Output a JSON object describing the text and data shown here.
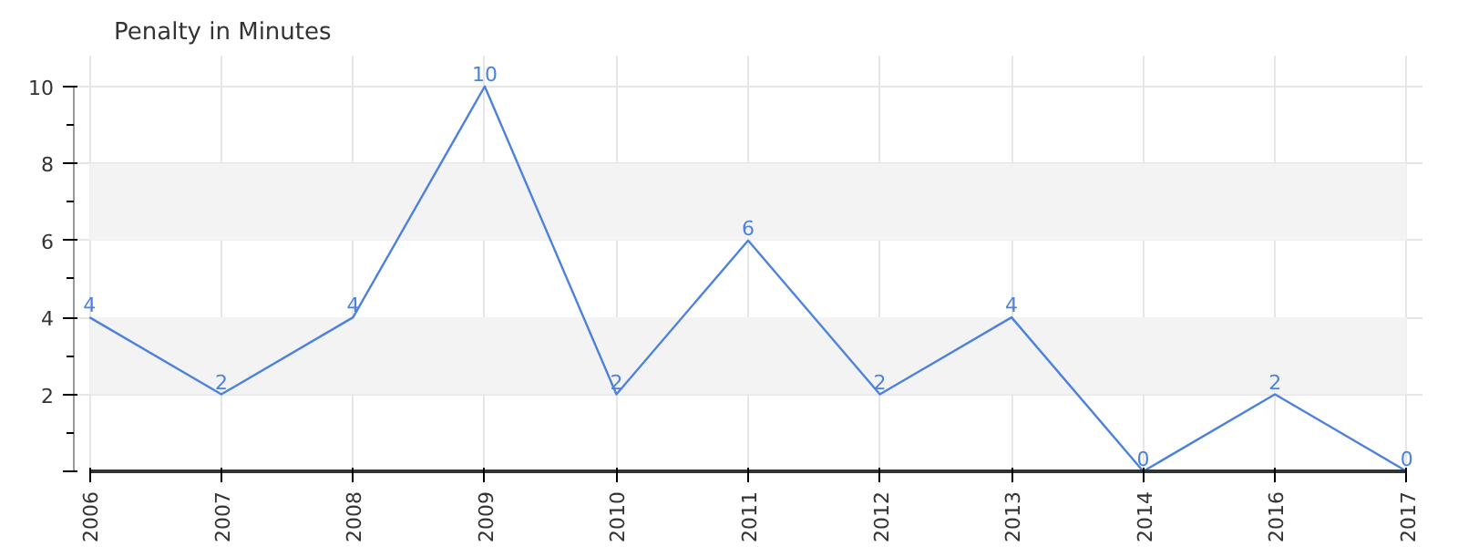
{
  "chart_data": {
    "type": "line",
    "ylabel": "Penalty in Minutes",
    "categories": [
      "2006",
      "2007",
      "2008",
      "2009",
      "2010",
      "2011",
      "2012",
      "2013",
      "2014",
      "2016",
      "2017"
    ],
    "series": [
      {
        "color": "#4d82dc",
        "values": [
          4,
          2,
          4,
          10,
          2,
          6,
          2,
          4,
          0,
          2,
          0
        ]
      }
    ],
    "ylim": [
      0,
      10
    ],
    "yticks": [
      {
        "value": 0,
        "label": null
      },
      2,
      4,
      6,
      8,
      10
    ],
    "bands": [
      {
        "axis": "y",
        "from": 2,
        "to": 4,
        "color": "#f3f3f3"
      },
      {
        "axis": "y",
        "from": 6,
        "to": 8,
        "color": "#f3f3f3"
      }
    ],
    "grid": true,
    "data_labels": true,
    "marker": "none",
    "line_style": "solid"
  }
}
